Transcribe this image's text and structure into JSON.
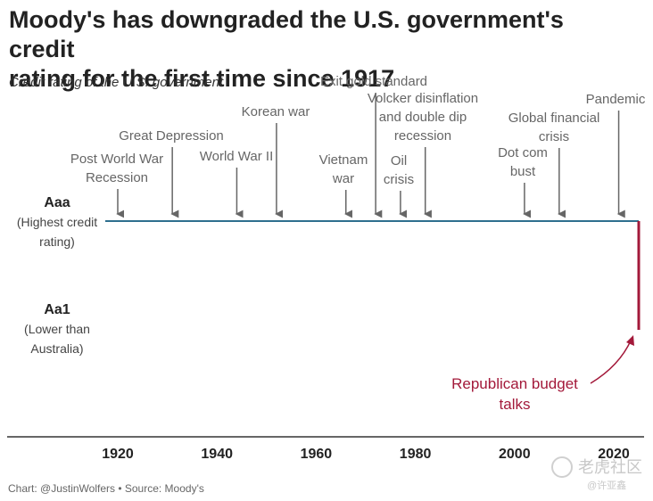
{
  "title_line1": "Moody's has downgraded the U.S. government's credit",
  "title_line2": "rating for the first time since 1917",
  "subtitle": "Credit rating of the U.S. government",
  "footer": "Chart: @JustinWolfers • Source: Moody's",
  "watermark": {
    "main": "老虎社区",
    "sub": "@许亚鑫"
  },
  "chart_data": {
    "type": "line",
    "xlim": [
      1910,
      2025
    ],
    "x_ticks": [
      1920,
      1940,
      1960,
      1980,
      2000,
      2020
    ],
    "y_categories": [
      {
        "level": "Aaa",
        "label": "Aaa",
        "description": [
          "(Highest credit",
          "rating)"
        ]
      },
      {
        "level": "Aa1",
        "label": "Aa1",
        "description": [
          "(Lower than",
          "Australia)"
        ]
      }
    ],
    "series": [
      {
        "color": "#2e6f8e",
        "points": [
          {
            "x": 1917,
            "y": "Aaa"
          },
          {
            "x": 2025,
            "y": "Aaa"
          }
        ]
      },
      {
        "color": "#a3193a",
        "points": [
          {
            "x": 2025,
            "y": "Aaa"
          },
          {
            "x": 2025,
            "y": "Aa1"
          }
        ]
      }
    ],
    "events": [
      {
        "x": 1920,
        "label": [
          "Post World War",
          "Recession"
        ]
      },
      {
        "x": 1931,
        "label": [
          "Great Depression"
        ]
      },
      {
        "x": 1944,
        "label": [
          "World War II"
        ]
      },
      {
        "x": 1952,
        "label": [
          "Korean war"
        ]
      },
      {
        "x": 1966,
        "label": [
          "Vietnam",
          "war"
        ]
      },
      {
        "x": 1972,
        "label": [
          "Exit gold standard"
        ]
      },
      {
        "x": 1977,
        "label": [
          "Oil",
          "crisis"
        ]
      },
      {
        "x": 1982,
        "label": [
          "Volcker disinflation",
          "and double dip",
          "recession"
        ]
      },
      {
        "x": 2002,
        "label": [
          "Dot com",
          "bust"
        ]
      },
      {
        "x": 2009,
        "label": [
          "Global financial",
          "crisis"
        ]
      },
      {
        "x": 2021,
        "label": [
          "Pandemic"
        ]
      }
    ],
    "annotation": {
      "x": 2025,
      "label": [
        "Republican budget",
        "talks"
      ],
      "color": "#a3193a"
    },
    "colors": {
      "axis": "#333333",
      "arrow": "#666666",
      "event_text": "#666666"
    }
  }
}
